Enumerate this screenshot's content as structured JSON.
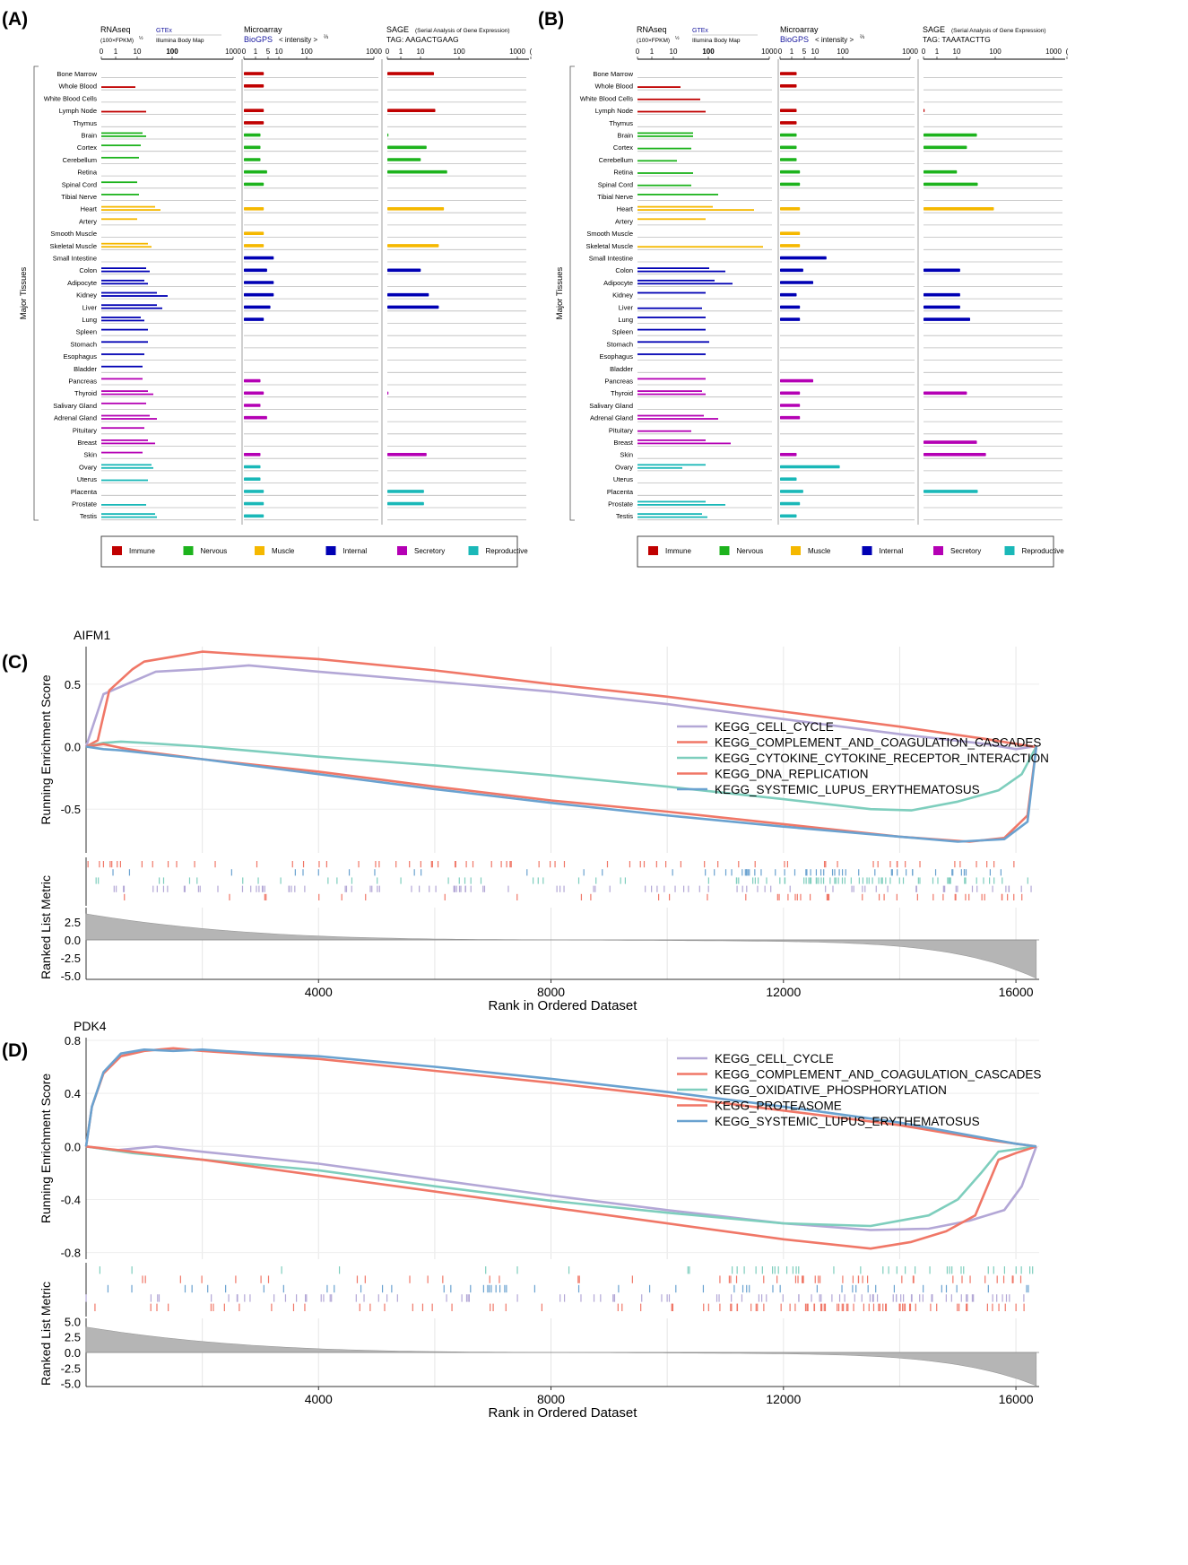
{
  "figure": {
    "panel_labels": [
      "(A)",
      "(B)",
      "(C)",
      "(D)"
    ]
  },
  "tissue_panels": {
    "colors": {
      "Immune": "#c00000",
      "Nervous": "#1db31d",
      "Muscle": "#f5b800",
      "Internal": "#0000b4",
      "Secretory": "#b400b4",
      "Reproductive": "#1ab8b8"
    },
    "legend": [
      "Immune",
      "Nervous",
      "Muscle",
      "Internal",
      "Secretory",
      "Reproductive"
    ],
    "y_axis_label": "Major Tissues",
    "columns": {
      "rnaseq_title": "RNAseq",
      "rnaseq_sub": "(100×FPKM)",
      "rnaseq_exp": "½",
      "gtex": "GTEx",
      "gtex_sub": "Illumina Body Map",
      "micro_title": "Microarray",
      "biogps": "BioGPS",
      "intensity": "< intensity >",
      "intensity_exp": "⅔",
      "sage_title": "SAGE",
      "sage_sub": "(Serial Analysis of Gene Expression)"
    },
    "rna_ticks": [
      "0",
      "1",
      "10",
      "100",
      "1000"
    ],
    "micro_ticks": [
      "0",
      "1",
      "5",
      "10",
      "100",
      "1000"
    ],
    "sage_ticks": [
      "0",
      "1",
      "10",
      "100",
      "1000",
      "("
    ],
    "tissues": [
      "Bone Marrow",
      "Whole Blood",
      "White Blood Cells",
      "Lymph Node",
      "Thymus",
      "Brain",
      "Cortex",
      "Cerebellum",
      "Retina",
      "Spinal Cord",
      "Tibial Nerve",
      "Heart",
      "Artery",
      "Smooth Muscle",
      "Skeletal Muscle",
      "Small Intestine",
      "Colon",
      "Adipocyte",
      "Kidney",
      "Liver",
      "Lung",
      "Spleen",
      "Stomach",
      "Esophagus",
      "Bladder",
      "Pancreas",
      "Thyroid",
      "Salivary Gland",
      "Adrenal Gland",
      "Pituitary",
      "Breast",
      "Skin",
      "Ovary",
      "Uterus",
      "Placenta",
      "Prostate",
      "Testis"
    ],
    "categories": [
      "Immune",
      "Immune",
      "Immune",
      "Immune",
      "Immune",
      "Nervous",
      "Nervous",
      "Nervous",
      "Nervous",
      "Nervous",
      "Nervous",
      "Muscle",
      "Muscle",
      "Muscle",
      "Muscle",
      "Internal",
      "Internal",
      "Internal",
      "Internal",
      "Internal",
      "Internal",
      "Internal",
      "Internal",
      "Internal",
      "Internal",
      "Secretory",
      "Secretory",
      "Secretory",
      "Secretory",
      "Secretory",
      "Secretory",
      "Secretory",
      "Reproductive",
      "Reproductive",
      "Reproductive",
      "Reproductive",
      "Reproductive"
    ],
    "panels": [
      {
        "label": "(A)",
        "sage_tag": "TAG: AAGACTGAAG",
        "rnaseq_gtex": [
          0,
          0,
          0,
          0,
          0,
          23,
          22,
          21,
          0,
          20,
          21,
          30,
          20,
          0,
          26,
          0,
          25,
          24,
          31,
          31,
          22,
          26,
          26,
          24,
          23,
          23,
          26,
          25,
          27,
          24,
          26,
          23,
          28,
          0,
          0,
          0,
          30
        ],
        "rnaseq_ibm": [
          0,
          19,
          0,
          25,
          0,
          25,
          0,
          0,
          0,
          0,
          0,
          33,
          0,
          0,
          28,
          0,
          27,
          26,
          37,
          34,
          24,
          0,
          0,
          0,
          0,
          0,
          29,
          0,
          31,
          0,
          30,
          0,
          29,
          26,
          0,
          25,
          31
        ],
        "micro": [
          6,
          6,
          0,
          6,
          6,
          5,
          5,
          5,
          7,
          6,
          0,
          6,
          0,
          6,
          6,
          9,
          7,
          9,
          9,
          8,
          6,
          0,
          0,
          0,
          0,
          5,
          6,
          5,
          7,
          0,
          0,
          5,
          5,
          5,
          6,
          6,
          6
        ],
        "sage": [
          10,
          0,
          0,
          11,
          0,
          0.3,
          6,
          4,
          25,
          0,
          0,
          20,
          0,
          0,
          14,
          0,
          4,
          0,
          7,
          14,
          0,
          0,
          0,
          0,
          0,
          0,
          0.3,
          0,
          0,
          0,
          0,
          6,
          0,
          0,
          5,
          5,
          0
        ]
      },
      {
        "label": "(B)",
        "sage_tag": "TAG: TAAATACTTG",
        "rnaseq_gtex": [
          0,
          0,
          0,
          0,
          0,
          31,
          0,
          0,
          0,
          0,
          45,
          42,
          38,
          0,
          0,
          0,
          40,
          43,
          38,
          0,
          38,
          38,
          40,
          38,
          0,
          38,
          36,
          0,
          37,
          0,
          38,
          0,
          38,
          0,
          0,
          38,
          36
        ],
        "rnaseq_ibm": [
          0,
          24,
          35,
          38,
          0,
          31,
          30,
          22,
          31,
          30,
          0,
          65,
          0,
          0,
          70,
          0,
          49,
          53,
          0,
          36,
          0,
          0,
          0,
          0,
          0,
          0,
          38,
          0,
          45,
          30,
          52,
          0,
          25,
          0,
          0,
          49,
          39
        ],
        "micro": [
          5,
          5,
          0,
          5,
          5,
          5,
          5,
          5,
          6,
          6,
          0,
          6,
          0,
          6,
          6,
          14,
          7,
          10,
          5,
          6,
          6,
          0,
          0,
          0,
          0,
          10,
          6,
          6,
          6,
          0,
          0,
          5,
          18,
          5,
          7,
          6,
          5
        ],
        "sage": [
          0,
          0,
          0,
          0.3,
          0,
          16,
          8,
          0,
          4,
          17,
          0,
          52,
          0,
          0,
          0,
          0,
          5,
          0,
          5,
          5,
          10,
          0,
          0,
          0,
          0,
          0,
          8,
          0,
          0,
          0,
          16,
          30,
          0,
          0,
          17,
          0,
          0
        ]
      }
    ]
  },
  "gsea_common": {
    "y_label_top": "Running Enrichment Score",
    "y_label_bottom": "Ranked List Metric",
    "x_label": "Rank in Ordered Dataset",
    "x_ticks": [
      "4000",
      "8000",
      "12000",
      "16000"
    ]
  },
  "chart_data": [
    {
      "type": "line",
      "panel": "(C)",
      "title": "AIFM1",
      "xlabel": "Rank in Ordered Dataset",
      "ylabel": "Running Enrichment Score",
      "xlim": [
        0,
        16400
      ],
      "ylim": [
        -0.85,
        0.8
      ],
      "yticks": [
        "0.5",
        "0.0",
        "-0.5"
      ],
      "metric_ticks": [
        "2.5",
        "0.0",
        "-2.5",
        "-5.0"
      ],
      "metric_range": [
        4.5,
        -5.5
      ],
      "metric_max": 3.5,
      "metric_min": -5,
      "series": [
        {
          "name": "KEGG_CELL_CYCLE",
          "color": "#b3a7d6",
          "x": [
            0,
            300,
            700,
            1200,
            2000,
            2800,
            4000,
            6000,
            8000,
            10000,
            12000,
            14000,
            15500,
            16000,
            16300,
            16350
          ],
          "y": [
            0,
            0.42,
            0.5,
            0.6,
            0.62,
            0.65,
            0.6,
            0.52,
            0.44,
            0.34,
            0.22,
            0.1,
            0.02,
            -0.02,
            0,
            0
          ]
        },
        {
          "name": "KEGG_COMPLEMENT_AND_COAGULATION_CASCADES",
          "color": "#f07767",
          "x": [
            0,
            200,
            400,
            800,
            1000,
            1500,
            2000,
            3000,
            4000,
            6000,
            8000,
            10000,
            12000,
            14000,
            15500,
            16300,
            16350
          ],
          "y": [
            0,
            0.05,
            0.45,
            0.62,
            0.68,
            0.72,
            0.76,
            0.73,
            0.7,
            0.61,
            0.5,
            0.4,
            0.28,
            0.16,
            0.06,
            0,
            0
          ]
        },
        {
          "name": "KEGG_CYTOKINE_CYTOKINE_RECEPTOR_INTERACTION",
          "color": "#7ecebd",
          "x": [
            0,
            300,
            600,
            1000,
            2000,
            4000,
            6000,
            8000,
            10000,
            12000,
            13500,
            14200,
            15000,
            15700,
            16100,
            16350
          ],
          "y": [
            0,
            0.03,
            0.04,
            0.03,
            0.0,
            -0.08,
            -0.15,
            -0.23,
            -0.32,
            -0.42,
            -0.5,
            -0.51,
            -0.44,
            -0.35,
            -0.22,
            0
          ]
        },
        {
          "name": "KEGG_DNA_REPLICATION",
          "color": "#f07767",
          "x": [
            0,
            300,
            600,
            1000,
            2000,
            4000,
            6000,
            8000,
            10000,
            12000,
            14000,
            15200,
            15800,
            16200,
            16350
          ],
          "y": [
            0,
            0.02,
            -0.01,
            -0.04,
            -0.1,
            -0.2,
            -0.32,
            -0.43,
            -0.52,
            -0.62,
            -0.72,
            -0.76,
            -0.73,
            -0.55,
            0
          ]
        },
        {
          "name": "KEGG_SYSTEMIC_LUPUS_ERYTHEMATOSUS",
          "color": "#6aa2d0",
          "x": [
            0,
            300,
            600,
            1000,
            2000,
            4000,
            6000,
            8000,
            10000,
            12000,
            14000,
            15000,
            15800,
            16200,
            16350
          ],
          "y": [
            0,
            -0.02,
            -0.03,
            -0.05,
            -0.1,
            -0.22,
            -0.34,
            -0.45,
            -0.55,
            -0.64,
            -0.72,
            -0.76,
            -0.74,
            -0.6,
            0
          ]
        }
      ]
    },
    {
      "type": "line",
      "panel": "(D)",
      "title": "PDK4",
      "xlabel": "Rank in Ordered Dataset",
      "ylabel": "Running Enrichment Score",
      "xlim": [
        0,
        16400
      ],
      "ylim": [
        -0.85,
        0.82
      ],
      "yticks": [
        "0.8",
        "0.4",
        "0.0",
        "-0.4",
        "-0.8"
      ],
      "metric_ticks": [
        "5.0",
        "2.5",
        "0.0",
        "-2.5",
        "-5.0"
      ],
      "metric_range": [
        5.5,
        -5.5
      ],
      "metric_max": 4,
      "metric_min": -5,
      "series": [
        {
          "name": "KEGG_CELL_CYCLE",
          "color": "#b3a7d6",
          "x": [
            0,
            500,
            1200,
            2000,
            4000,
            6000,
            8000,
            10000,
            12000,
            13500,
            14500,
            15200,
            15800,
            16100,
            16350
          ],
          "y": [
            0,
            -0.03,
            0.0,
            -0.04,
            -0.13,
            -0.25,
            -0.37,
            -0.48,
            -0.58,
            -0.63,
            -0.62,
            -0.56,
            -0.48,
            -0.3,
            0
          ]
        },
        {
          "name": "KEGG_COMPLEMENT_AND_COAGULATION_CASCADES",
          "color": "#f07767",
          "x": [
            0,
            100,
            300,
            600,
            1000,
            1500,
            2000,
            3000,
            4000,
            6000,
            8000,
            10000,
            12000,
            14000,
            15500,
            16350
          ],
          "y": [
            0,
            0.3,
            0.55,
            0.68,
            0.72,
            0.74,
            0.72,
            0.69,
            0.66,
            0.57,
            0.48,
            0.38,
            0.27,
            0.16,
            0.05,
            0
          ]
        },
        {
          "name": "KEGG_OXIDATIVE_PHOSPHORYLATION",
          "color": "#7ecebd",
          "x": [
            0,
            800,
            1500,
            2500,
            4000,
            6000,
            8000,
            10000,
            12000,
            13500,
            14500,
            15000,
            15400,
            15700,
            16350
          ],
          "y": [
            0,
            -0.05,
            -0.08,
            -0.12,
            -0.18,
            -0.3,
            -0.41,
            -0.5,
            -0.58,
            -0.6,
            -0.52,
            -0.4,
            -0.2,
            -0.04,
            0
          ]
        },
        {
          "name": "KEGG_PROTEASOME",
          "color": "#f07767",
          "x": [
            0,
            2000,
            4000,
            6000,
            8000,
            10000,
            12000,
            13500,
            14200,
            14800,
            15300,
            15700,
            16000,
            16350
          ],
          "y": [
            0,
            -0.1,
            -0.22,
            -0.34,
            -0.46,
            -0.58,
            -0.7,
            -0.77,
            -0.72,
            -0.64,
            -0.52,
            -0.1,
            -0.05,
            0
          ]
        },
        {
          "name": "KEGG_SYSTEMIC_LUPUS_ERYTHEMATOSUS",
          "color": "#6aa2d0",
          "x": [
            0,
            100,
            300,
            600,
            1000,
            1500,
            2000,
            3000,
            4000,
            6000,
            8000,
            10000,
            12000,
            14000,
            15500,
            16000,
            16350
          ],
          "y": [
            0,
            0.3,
            0.56,
            0.7,
            0.73,
            0.72,
            0.73,
            0.7,
            0.68,
            0.6,
            0.51,
            0.41,
            0.3,
            0.18,
            0.06,
            0.02,
            0
          ]
        }
      ]
    }
  ]
}
